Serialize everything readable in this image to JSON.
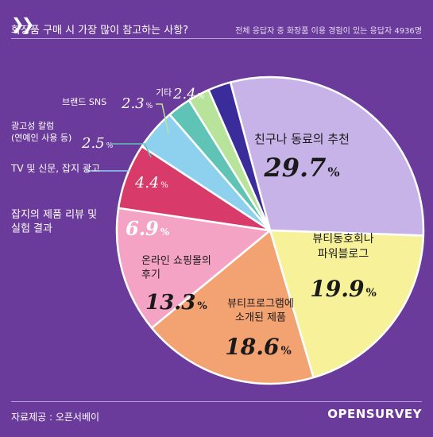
{
  "header": {
    "title": "화장품 구매 시 가장 많이 참고하는 사항?",
    "subtitle": "전체 응답자 중 화장품 이용 경험이 있는 응답자 4936명"
  },
  "footer": {
    "source": "자료제공 : 오픈서베이",
    "logo": "OPENSURVEY"
  },
  "chart_data": {
    "type": "pie",
    "title": "화장품 구매 시 가장 많이 참고하는 사항?",
    "unit": "%",
    "slices": [
      {
        "label": "친구나 동료의 추천",
        "value": 29.7,
        "color": "#c8b3e8"
      },
      {
        "label": "뷰티동호회나 파워블로그",
        "value": 19.9,
        "color": "#f7f29a"
      },
      {
        "label": "뷰티프로그램에 소개된 제품",
        "value": 18.6,
        "color": "#f3a271"
      },
      {
        "label": "온라인 쇼핑몰의 후기",
        "value": 13.3,
        "color": "#f5a3c4"
      },
      {
        "label": "잡지의 제품 리뷰 및 실험 결과",
        "value": 6.9,
        "color": "#d83a6a"
      },
      {
        "label": "TV 및 신문, 잡지 광고",
        "value": 4.4,
        "color": "#8ed1ef"
      },
      {
        "label": "광고성 칼럼 (연예인 사용 등)",
        "value": 2.5,
        "color": "#5fc4b6"
      },
      {
        "label": "브랜드 SNS",
        "value": 2.3,
        "color": "#b7e39a"
      },
      {
        "label": "기타",
        "value": 2.4,
        "color": "#3a2c9a"
      }
    ],
    "slice_labels": [
      {
        "text_lines": [
          "친구나 동료의 추천"
        ],
        "value_text": "29.7",
        "pct": "%"
      },
      {
        "text_lines": [
          "뷰티동호회나",
          "파워블로그"
        ],
        "value_text": "19.9",
        "pct": "%"
      },
      {
        "text_lines": [
          "뷰티프로그램에",
          "소개된 제품"
        ],
        "value_text": "18.6",
        "pct": "%"
      },
      {
        "text_lines": [
          "온라인 쇼핑몰의",
          "후기"
        ],
        "value_text": "13.3",
        "pct": "%"
      },
      {
        "text_lines": [
          "잡지의 제품 리뷰 및",
          "실험 결과"
        ],
        "value_text": "6.9",
        "pct": "%"
      },
      {
        "text_lines": [
          "TV 및 신문, 잡지 광고"
        ],
        "value_text": "4.4",
        "pct": "%"
      },
      {
        "text_lines": [
          "광고성 칼럼",
          "(연예인 사용 등)"
        ],
        "value_text": "2.5",
        "pct": "%"
      },
      {
        "text_lines": [
          "브랜드 SNS"
        ],
        "value_text": "2.3",
        "pct": "%"
      },
      {
        "text_lines": [
          "기타"
        ],
        "value_text": "2.4",
        "pct": "%"
      }
    ],
    "legend": "none"
  }
}
